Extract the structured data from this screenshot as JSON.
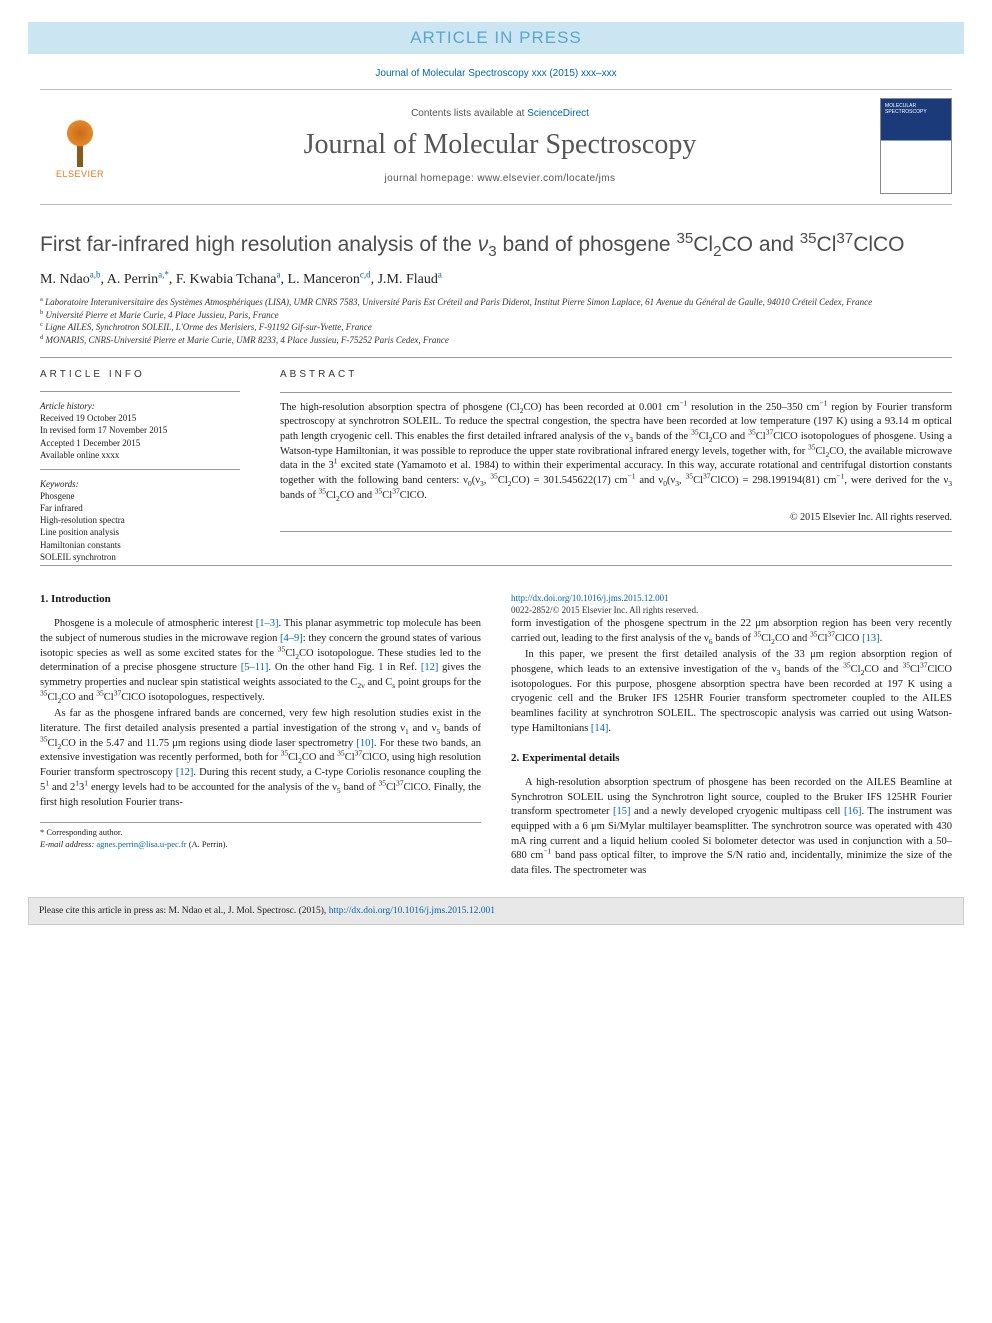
{
  "banner": "ARTICLE IN PRESS",
  "journal_ref": "Journal of Molecular Spectroscopy xxx (2015) xxx–xxx",
  "masthead": {
    "publisher": "ELSEVIER",
    "contents_prefix": "Contents lists available at ",
    "contents_link": "ScienceDirect",
    "journal_title": "Journal of Molecular Spectroscopy",
    "homepage": "journal homepage: www.elsevier.com/locate/jms",
    "cover_text": "MOLECULAR SPECTROSCOPY"
  },
  "title_html": "First far-infrared high resolution analysis of the <i>ν</i><sub>3</sub> band of phosgene <sup>35</sup>Cl<sub>2</sub>CO and <sup>35</sup>Cl<sup>37</sup>ClCO",
  "authors_html": "M. Ndao<sup>a,b</sup>, A. Perrin<sup>a,*</sup>, F. Kwabia Tchana<sup>a</sup>, L. Manceron<sup>c,d</sup>, J.M. Flaud<sup>a</sup>",
  "affiliations": [
    "<sup>a</sup> Laboratoire Interuniversitaire des Systèmes Atmosphériques (LISA), UMR CNRS 7583, Université Paris Est Créteil and Paris Diderot, Institut Pierre Simon Laplace, 61 Avenue du Général de Gaulle, 94010 Créteil Cedex, France",
    "<sup>b</sup> Université Pierre et Marie Curie, 4 Place Jussieu, Paris, France",
    "<sup>c</sup> Ligne AILES, Synchrotron SOLEIL, L'Orme des Merisiers, F-91192 Gif-sur-Yvette, France",
    "<sup>d</sup> MONARIS, CNRS-Université Pierre et Marie Curie, UMR 8233, 4 Place Jussieu, F-75252 Paris Cedex, France"
  ],
  "info": {
    "heading_info": "article info",
    "heading_abs": "abstract",
    "history_label": "Article history:",
    "history": [
      "Received 19 October 2015",
      "In revised form 17 November 2015",
      "Accepted 1 December 2015",
      "Available online xxxx"
    ],
    "keywords_label": "Keywords:",
    "keywords": [
      "Phosgene",
      "Far infrared",
      "High-resolution spectra",
      "Line position analysis",
      "Hamiltonian constants",
      "SOLEIL synchrotron"
    ]
  },
  "abstract_html": "The high-resolution absorption spectra of phosgene (Cl<sub>2</sub>CO) has been recorded at 0.001 cm<sup>−1</sup> resolution in the 250–350 cm<sup>−1</sup> region by Fourier transform spectroscopy at synchrotron SOLEIL. To reduce the spectral congestion, the spectra have been recorded at low temperature (197 K) using a 93.14 m optical path length cryogenic cell. This enables the first detailed infrared analysis of the ν<sub>3</sub> bands of the <sup>35</sup>Cl<sub>2</sub>CO and <sup>35</sup>Cl<sup>37</sup>ClCO isotopologues of phosgene. Using a Watson-type Hamiltonian, it was possible to reproduce the upper state rovibrational infrared energy levels, together with, for <sup>35</sup>Cl<sub>2</sub>CO, the available microwave data in the 3<sup>1</sup> excited state (Yamamoto et al. 1984) to within their experimental accuracy. In this way, accurate rotational and centrifugal distortion constants together with the following band centers: ν<sub>0</sub>(ν<sub>3</sub>, <sup>35</sup>Cl<sub>2</sub>CO) = 301.545622(17) cm<sup>−1</sup> and ν<sub>0</sub>(ν<sub>3</sub>, <sup>35</sup>Cl<sup>37</sup>ClCO) = 298.199194(81) cm<sup>−1</sup>, were derived for the ν<sub>3</sub> bands of <sup>35</sup>Cl<sub>2</sub>CO and <sup>35</sup>Cl<sup>37</sup>ClCO.",
  "copyright": "© 2015 Elsevier Inc. All rights reserved.",
  "sections": {
    "s1_title": "1. Introduction",
    "s1_p1": "Phosgene is a molecule of atmospheric interest <span class=\"ref\">[1–3]</span>. This planar asymmetric top molecule has been the subject of numerous studies in the microwave region <span class=\"ref\">[4–9]</span>: they concern the ground states of various isotopic species as well as some excited states for the <sup>35</sup>Cl<sub>2</sub>CO isotopologue. These studies led to the determination of a precise phosgene structure <span class=\"ref\">[5–11]</span>. On the other hand Fig. 1 in Ref. <span class=\"ref\">[12]</span> gives the symmetry properties and nuclear spin statistical weights associated to the C<sub>2v</sub> and C<sub>s</sub> point groups for the <sup>35</sup>Cl<sub>2</sub>CO and <sup>35</sup>Cl<sup>37</sup>ClCO isotopologues, respectively.",
    "s1_p2": "As far as the phosgene infrared bands are concerned, very few high resolution studies exist in the literature. The first detailed analysis presented a partial investigation of the strong ν<sub>1</sub> and ν<sub>5</sub> bands of <sup>35</sup>Cl<sub>2</sub>CO in the 5.47 and 11.75 μm regions using diode laser spectrometry <span class=\"ref\">[10]</span>. For these two bands, an extensive investigation was recently performed, both for <sup>35</sup>Cl<sub>2</sub>CO and <sup>35</sup>Cl<sup>37</sup>ClCO, using high resolution Fourier transform spectroscopy <span class=\"ref\">[12]</span>. During this recent study, a C-type Coriolis resonance coupling the 5<sup>1</sup> and 2<sup>1</sup>3<sup>1</sup> energy levels had to be accounted for the analysis of the ν<sub>5</sub> band of <sup>35</sup>Cl<sup>37</sup>ClCO. Finally, the first high resolution Fourier trans-",
    "s1_p3": "form investigation of the phosgene spectrum in the 22 μm absorption region has been very recently carried out, leading to the first analysis of the ν<sub>6</sub> bands of <sup>35</sup>Cl<sub>2</sub>CO and <sup>35</sup>Cl<sup>37</sup>ClCO <span class=\"ref\">[13]</span>.",
    "s1_p4": "In this paper, we present the first detailed analysis of the 33 μm region absorption region of phosgene, which leads to an extensive investigation of the ν<sub>3</sub> bands of the <sup>35</sup>Cl<sub>2</sub>CO and <sup>35</sup>Cl<sup>37</sup>ClCO isotopologues. For this purpose, phosgene absorption spectra have been recorded at 197 K using a cryogenic cell and the Bruker IFS 125HR Fourier transform spectrometer coupled to the AILES beamlines facility at synchrotron SOLEIL. The spectroscopic analysis was carried out using Watson-type Hamiltonians <span class=\"ref\">[14]</span>.",
    "s2_title": "2. Experimental details",
    "s2_p1": "A high-resolution absorption spectrum of phosgene has been recorded on the AILES Beamline at Synchrotron SOLEIL using the Synchrotron light source, coupled to the Bruker IFS 125HR Fourier transform spectrometer <span class=\"ref\">[15]</span> and a newly developed cryogenic multipass cell <span class=\"ref\">[16]</span>. The instrument was equipped with a 6 μm Si/Mylar multilayer beamsplitter. The synchrotron source was operated with 430 mA ring current and a liquid helium cooled Si bolometer detector was used in conjunction with a 50–680 cm<sup>−1</sup> band pass optical filter, to improve the S/N ratio and, incidentally, minimize the size of the data files. The spectrometer was"
  },
  "footnote": {
    "corr": "* Corresponding author.",
    "email_label": "E-mail address:",
    "email": "agnes.perrin@lisa.u-pec.fr",
    "email_pers": "(A. Perrin)."
  },
  "doi": {
    "url": "http://dx.doi.org/10.1016/j.jms.2015.12.001",
    "issn_line": "0022-2852/© 2015 Elsevier Inc. All rights reserved."
  },
  "cite_bar": {
    "prefix": "Please cite this article in press as: M. Ndao et al., J. Mol. Spectrosc. (2015), ",
    "link": "http://dx.doi.org/10.1016/j.jms.2015.12.001"
  }
}
